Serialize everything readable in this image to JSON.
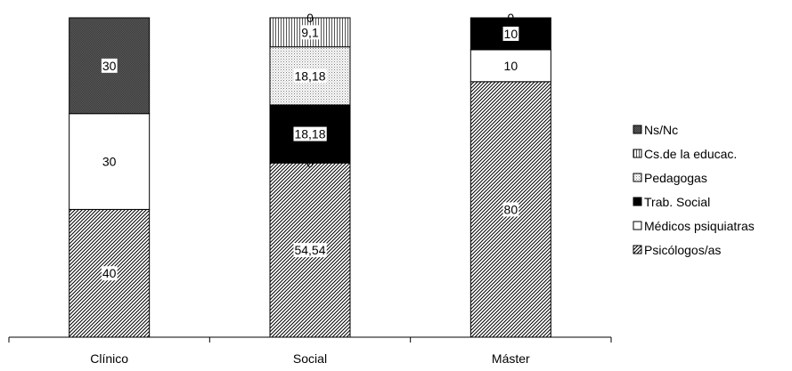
{
  "chart_data": {
    "type": "bar",
    "stacked": true,
    "categories": [
      "Clínico",
      "Social",
      "Máster"
    ],
    "ylim": [
      0,
      100
    ],
    "grid": false,
    "legend_position": "right",
    "series": [
      {
        "name": "Psicólogos/as",
        "pattern": "diagonal-hatch",
        "values": [
          40,
          54.54,
          80
        ],
        "labels": [
          "40",
          "54,54",
          "80"
        ]
      },
      {
        "name": "Médicos psiquiatras",
        "pattern": "white",
        "values": [
          30,
          0,
          10
        ],
        "labels": [
          "30",
          "0",
          "10"
        ]
      },
      {
        "name": "Trab. Social",
        "pattern": "black",
        "values": [
          0,
          18.18,
          10
        ],
        "labels": [
          "",
          "18,18",
          "10"
        ]
      },
      {
        "name": "Pedagogas",
        "pattern": "dotted",
        "values": [
          0,
          18.18,
          0
        ],
        "labels": [
          "",
          "18,18",
          "0"
        ]
      },
      {
        "name": "Cs.de la educac.",
        "pattern": "vertical-lines",
        "values": [
          0,
          9.1,
          0
        ],
        "labels": [
          "",
          "9,1",
          ""
        ]
      },
      {
        "name": "Ns/Nc",
        "pattern": "dark-checker",
        "values": [
          30,
          0,
          0
        ],
        "labels": [
          "30",
          "0",
          ""
        ]
      }
    ],
    "legend_order": [
      "Ns/Nc",
      "Cs.de la educac.",
      "Pedagogas",
      "Trab. Social",
      "Médicos psiquiatras",
      "Psicólogos/as"
    ]
  }
}
